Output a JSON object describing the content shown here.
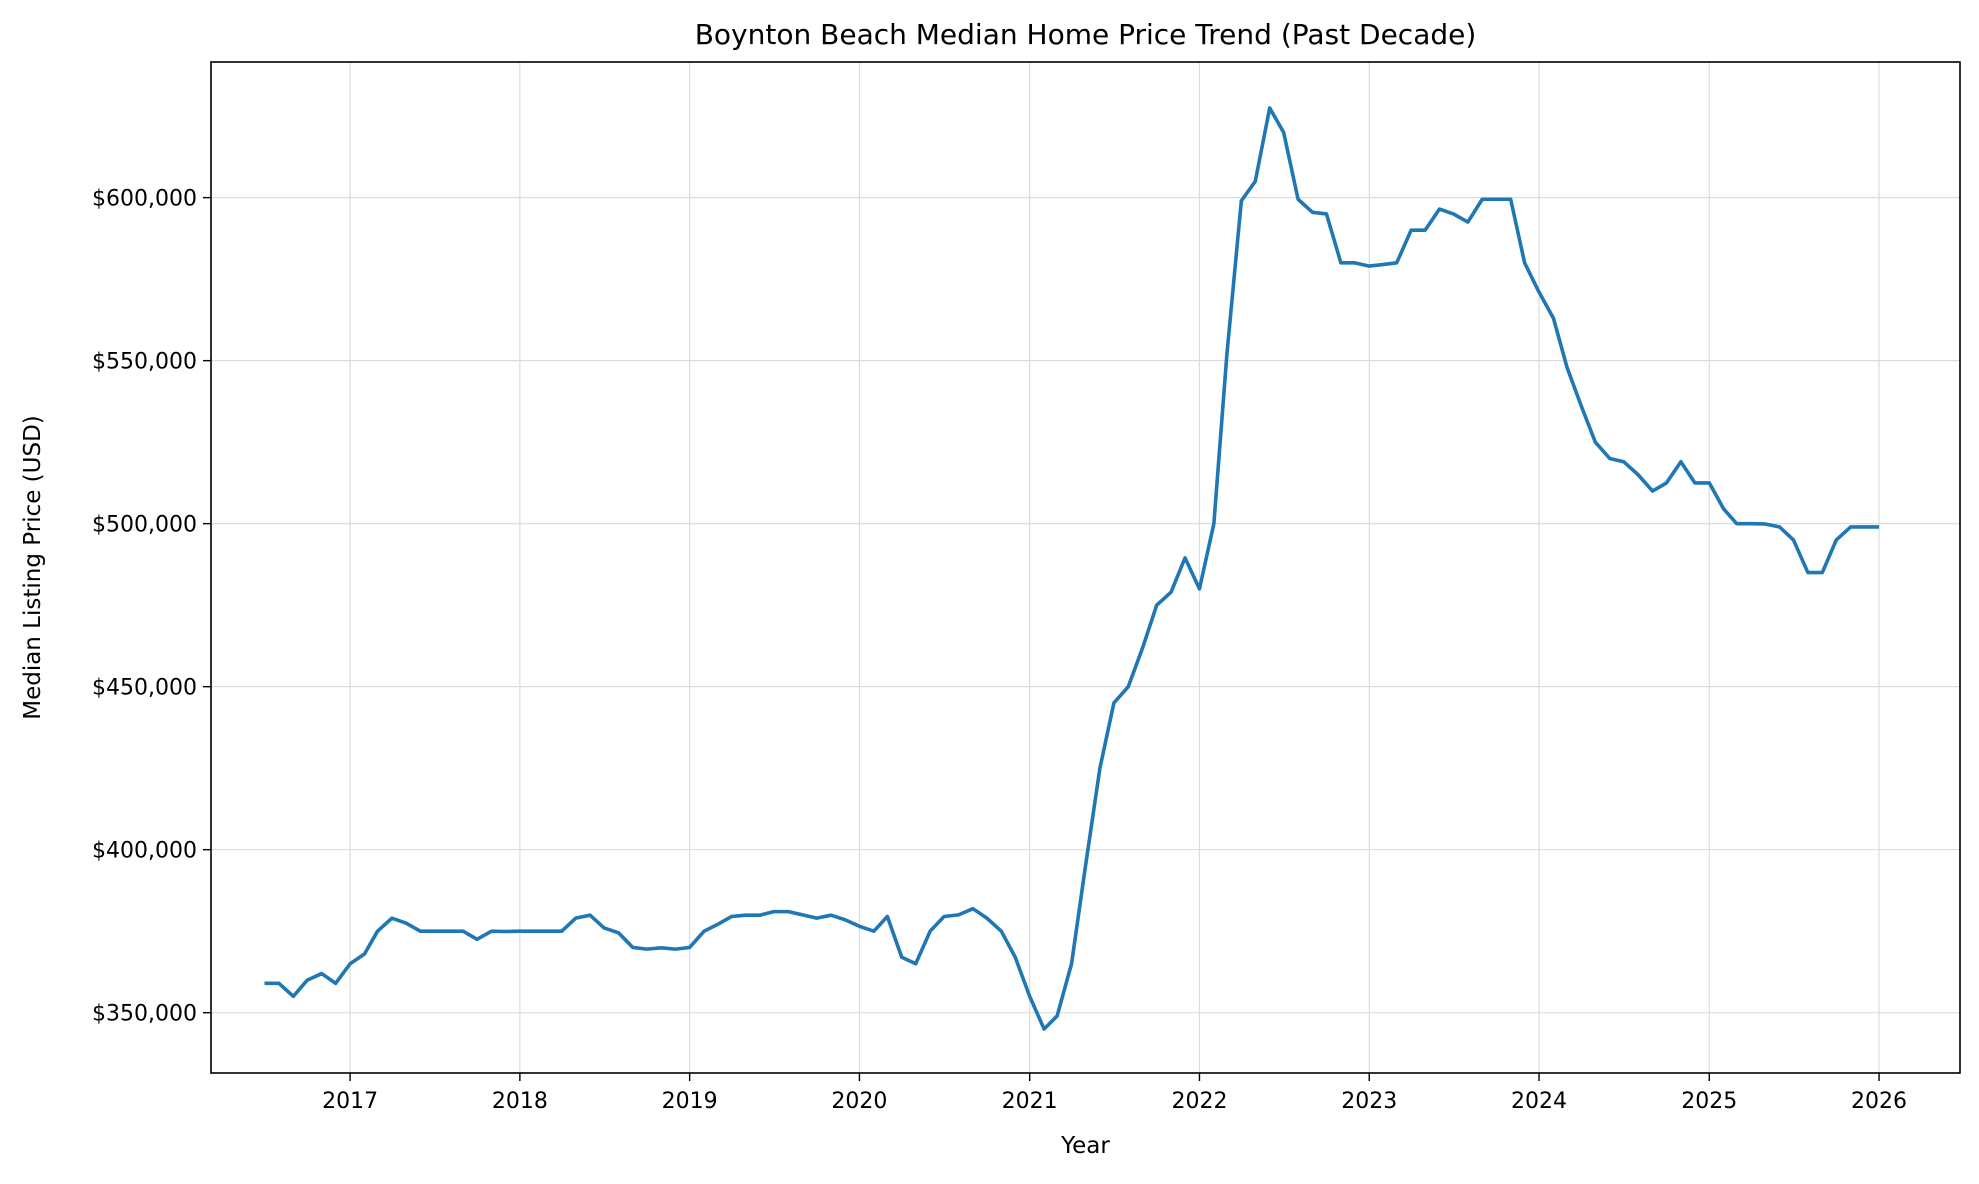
{
  "chart_data": {
    "type": "line",
    "title": "Boynton Beach Median Home Price Trend (Past Decade)",
    "xlabel": "Year",
    "ylabel": "Median Listing Price (USD)",
    "x_ticks": [
      "2017",
      "2018",
      "2019",
      "2020",
      "2021",
      "2022",
      "2023",
      "2024",
      "2025",
      "2026"
    ],
    "x_tick_values": [
      "2017-01-01",
      "2018-01-01",
      "2019-01-01",
      "2020-01-01",
      "2021-01-01",
      "2022-01-01",
      "2023-01-01",
      "2024-01-01",
      "2025-01-01",
      "2026-01-01"
    ],
    "y_ticks": [
      "$350,000",
      "$400,000",
      "$450,000",
      "$500,000",
      "$550,000",
      "$600,000"
    ],
    "y_tick_values": [
      350000,
      400000,
      450000,
      500000,
      550000,
      600000
    ],
    "xlim": [
      "2016-03-08",
      "2026-06-24"
    ],
    "ylim": [
      331500,
      641600
    ],
    "grid": true,
    "legend": "none",
    "color": "#1f77b4",
    "series": [
      {
        "x": [
          "2016-07-01",
          "2016-08-01",
          "2016-09-01",
          "2016-10-01",
          "2016-11-01",
          "2016-12-01",
          "2017-01-01",
          "2017-02-01",
          "2017-03-01",
          "2017-04-01",
          "2017-05-01",
          "2017-06-01",
          "2017-07-01",
          "2017-08-01",
          "2017-09-01",
          "2017-10-01",
          "2017-11-01",
          "2017-12-01",
          "2018-01-01",
          "2018-02-01",
          "2018-03-01",
          "2018-04-01",
          "2018-05-01",
          "2018-06-01",
          "2018-07-01",
          "2018-08-01",
          "2018-09-01",
          "2018-10-01",
          "2018-11-01",
          "2018-12-01",
          "2019-01-01",
          "2019-02-01",
          "2019-03-01",
          "2019-04-01",
          "2019-05-01",
          "2019-06-01",
          "2019-07-01",
          "2019-08-01",
          "2019-09-01",
          "2019-10-01",
          "2019-11-01",
          "2019-12-01",
          "2020-01-01",
          "2020-02-01",
          "2020-03-01",
          "2020-04-01",
          "2020-05-01",
          "2020-06-01",
          "2020-07-01",
          "2020-08-01",
          "2020-09-01",
          "2020-10-01",
          "2020-11-01",
          "2020-12-01",
          "2021-01-01",
          "2021-02-01",
          "2021-03-01",
          "2021-04-01",
          "2021-05-01",
          "2021-06-01",
          "2021-07-01",
          "2021-08-01",
          "2021-09-01",
          "2021-10-01",
          "2021-11-01",
          "2021-12-01",
          "2022-01-01",
          "2022-02-01",
          "2022-03-01",
          "2022-04-01",
          "2022-05-01",
          "2022-06-01",
          "2022-07-01",
          "2022-08-01",
          "2022-09-01",
          "2022-10-01",
          "2022-11-01",
          "2022-12-01",
          "2023-01-01",
          "2023-02-01",
          "2023-03-01",
          "2023-04-01",
          "2023-05-01",
          "2023-06-01",
          "2023-07-01",
          "2023-08-01",
          "2023-09-01",
          "2023-10-01",
          "2023-11-01",
          "2023-12-01",
          "2024-01-01",
          "2024-02-01",
          "2024-03-01",
          "2024-04-01",
          "2024-05-01",
          "2024-06-01",
          "2024-07-01",
          "2024-08-01",
          "2024-09-01",
          "2024-10-01",
          "2024-11-01",
          "2024-12-01",
          "2025-01-01",
          "2025-02-01",
          "2025-03-01",
          "2025-04-01",
          "2025-05-01",
          "2025-06-01",
          "2025-07-01",
          "2025-08-01",
          "2025-09-01",
          "2025-10-01",
          "2025-11-01",
          "2025-12-01",
          "2026-01-01"
        ],
        "y": [
          359000,
          359000,
          355000,
          360000,
          362000,
          359000,
          365000,
          368000,
          375000,
          379000,
          377500,
          375000,
          375000,
          375000,
          375000,
          372500,
          375000,
          374900,
          375000,
          375000,
          375000,
          375000,
          379000,
          379900,
          376000,
          374500,
          370000,
          369500,
          369900,
          369500,
          370000,
          375000,
          377000,
          379500,
          379900,
          379900,
          381000,
          381000,
          380000,
          379000,
          379900,
          378500,
          376500,
          375000,
          379500,
          367000,
          365000,
          375000,
          379500,
          380000,
          381900,
          379000,
          375000,
          367000,
          355000,
          345000,
          349000,
          365000,
          395000,
          425000,
          445000,
          450000,
          462000,
          475000,
          479000,
          489500,
          480000,
          500000,
          552000,
          599000,
          605000,
          627500,
          620000,
          599500,
          595500,
          595000,
          580000,
          580000,
          579000,
          579500,
          580000,
          590000,
          590000,
          596500,
          595000,
          592500,
          599500,
          599500,
          599500,
          580000,
          571000,
          563000,
          548000,
          536000,
          525000,
          520000,
          519000,
          515000,
          510000,
          512500,
          519000,
          512500,
          512500,
          504500,
          500000,
          500000,
          499900,
          499000,
          495000,
          485000,
          485000,
          495000,
          499000,
          499000,
          499000
        ]
      }
    ]
  }
}
